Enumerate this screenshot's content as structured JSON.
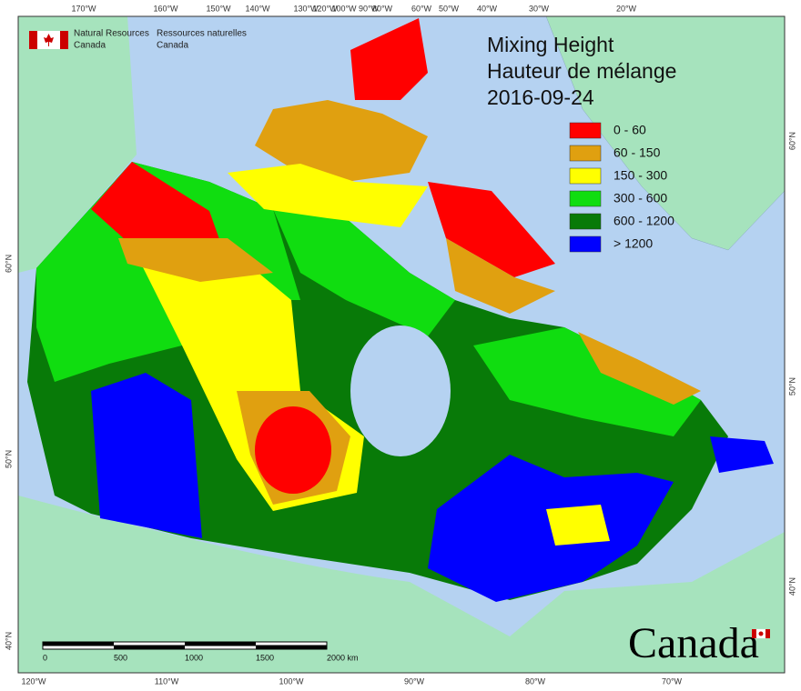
{
  "header": {
    "org_en_1": "Natural Resources",
    "org_en_2": "Canada",
    "org_fr_1": "Ressources naturelles",
    "org_fr_2": "Canada"
  },
  "title": {
    "line1": "Mixing Height",
    "line2": "Hauteur de mélange",
    "date": "2016-09-24"
  },
  "legend": [
    {
      "label": "0 - 60",
      "color": "#ff0000"
    },
    {
      "label": "60 - 150",
      "color": "#e0a010"
    },
    {
      "label": "150 - 300",
      "color": "#ffff00"
    },
    {
      "label": "300 - 600",
      "color": "#10dd10"
    },
    {
      "label": "600 - 1200",
      "color": "#087a08"
    },
    {
      "label": "> 1200",
      "color": "#0000ff"
    }
  ],
  "graticule": {
    "top": [
      "170°W",
      "160°W",
      "150°W",
      "140°W",
      "130°W",
      "120°W",
      "100°W",
      "90°W",
      "80°W",
      "60°W",
      "50°W",
      "40°W",
      "30°W",
      "20°W"
    ],
    "bottom": [
      "120°W",
      "110°W",
      "100°W",
      "90°W",
      "80°W",
      "70°W"
    ],
    "left": [
      "60°N",
      "50°N",
      "40°N"
    ],
    "right": [
      "60°N",
      "50°N",
      "40°N"
    ]
  },
  "scale_bar": {
    "labels": [
      "0",
      "500",
      "1000",
      "1500",
      "2000 km"
    ]
  },
  "wordmark": "Canada"
}
